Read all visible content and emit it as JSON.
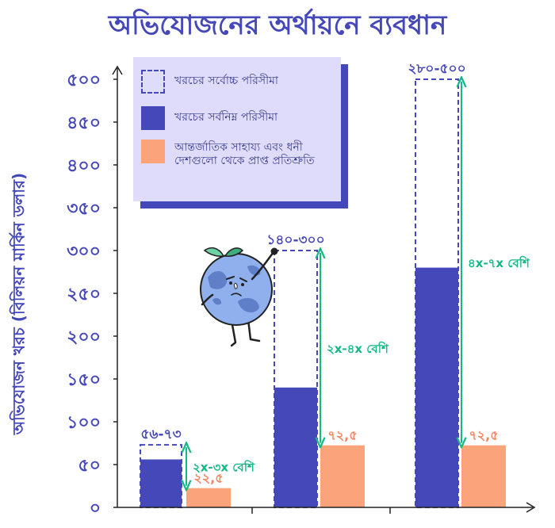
{
  "title": "অভিযোজনের অর্থায়নে ব্যবধান",
  "colors": {
    "primary": "#4548b8",
    "upper_outline": "#4548b8",
    "lower_fill": "#4548b8",
    "pledge_fill": "#fba47b",
    "pledge_text": "#f4845f",
    "gap_arrow": "#14b886",
    "legend_bg": "#dedcfa"
  },
  "chart_data": {
    "type": "bar",
    "title": "অভিযোজনের অর্থায়নে ব্যবধান",
    "xlabel": "",
    "ylabel": "অভিযোজন খরচ (বিলিয়ন মার্কিন ডলার)",
    "ylim": [
      0,
      500
    ],
    "yticks": [
      0,
      50,
      100,
      150,
      200,
      250,
      300,
      350,
      400,
      450,
      500
    ],
    "ytick_labels": [
      "০",
      "৫০",
      "১০০",
      "১৫০",
      "২০০",
      "২৫০",
      "৩০০",
      "৩৫০",
      "৪০০",
      "৪৫০",
      "৫০০"
    ],
    "legend_position": "top-left",
    "grid": false,
    "series": [
      {
        "name": "খরচের সর্বোচ্চ পরিসীমা",
        "values": [
          73,
          300,
          500
        ]
      },
      {
        "name": "খরচের সর্বনিম্ন পরিসীমা",
        "values": [
          56,
          140,
          280
        ]
      },
      {
        "name": "আন্তর্জাতিক সাহায্য এবং ধনী দেশগুলো থেকে প্রাপ্ত প্রতিশ্রুতি",
        "values": [
          22.5,
          72.5,
          72.5
        ]
      }
    ],
    "range_labels": [
      "৫৬-৭৩",
      "১৪০-৩০০",
      "২৮০-৫০০"
    ],
    "pledge_labels": [
      "২২,৫",
      "৭২,৫",
      "৭২,৫"
    ],
    "gap_labels": [
      "২x-৩x বেশি",
      "২x-৪x বেশি",
      "৪x-৭x বেশি"
    ]
  },
  "legend": [
    {
      "label": "খরচের সর্বোচ্চ পরিসীমা",
      "style": "dashed"
    },
    {
      "label": "খরচের সর্বনিম্ন পরিসীমা",
      "style": "solid"
    },
    {
      "label": "আন্তর্জাতিক সাহায্য এবং ধনী দেশগুলো থেকে প্রাপ্ত প্রতিশ্রুতি",
      "style": "pledge"
    }
  ],
  "mascot": {
    "icon": "earth-globe-mascot-icon"
  }
}
